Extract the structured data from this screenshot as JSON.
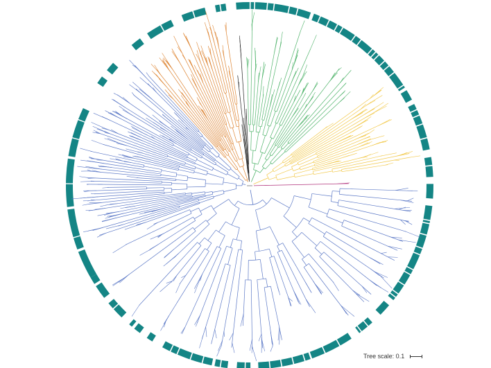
{
  "figure": {
    "type": "circular-phylogenetic-tree",
    "scale_label": "Tree scale: 0.1"
  },
  "colors": {
    "ring": "#148585",
    "orange_clade": "#dd8432",
    "green_clade": "#4fb36a",
    "yellow_clade": "#f2c94c",
    "blue_clade": "#5b78c6",
    "black_clade": "#222222",
    "magenta_branch": "#b0307a",
    "root": "#888888"
  },
  "clades": [
    {
      "color_key": "blue_clade",
      "leaves": 58
    },
    {
      "color_key": "orange_clade",
      "leaves": 26
    },
    {
      "color_key": "black_clade",
      "leaves": 5
    },
    {
      "color_key": "green_clade",
      "leaves": 26
    },
    {
      "color_key": "yellow_clade",
      "leaves": 22
    },
    {
      "color_key": "magenta_branch",
      "leaves": 1
    },
    {
      "color_key": "blue_clade",
      "leaves": 44
    }
  ]
}
